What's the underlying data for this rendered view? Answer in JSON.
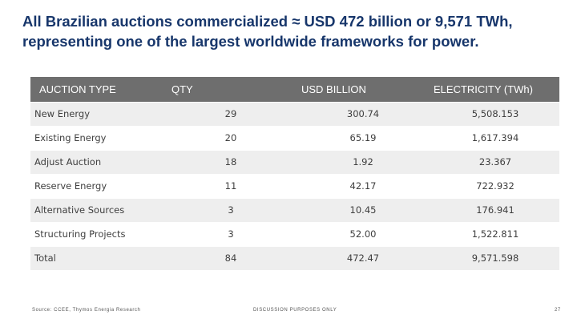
{
  "title": "All Brazilian auctions commercialized ≈ USD 472 billion or 9,571 TWh, representing one of the largest worldwide frameworks for power.",
  "columns": {
    "type": "AUCTION TYPE",
    "qty": "QTY",
    "usd": "USD BILLION",
    "electricity": "ELECTRICITY (TWh)"
  },
  "rows": [
    {
      "type": "New Energy",
      "qty": "29",
      "usd": "300.74",
      "electricity": "5,508.153"
    },
    {
      "type": "Existing Energy",
      "qty": "20",
      "usd": "65.19",
      "electricity": "1,617.394"
    },
    {
      "type": "Adjust Auction",
      "qty": "18",
      "usd": "1.92",
      "electricity": "23.367"
    },
    {
      "type": "Reserve Energy",
      "qty": "11",
      "usd": "42.17",
      "electricity": "722.932"
    },
    {
      "type": "Alternative Sources",
      "qty": "3",
      "usd": "10.45",
      "electricity": "176.941"
    },
    {
      "type": "Structuring Projects",
      "qty": "3",
      "usd": "52.00",
      "electricity": "1,522.811"
    },
    {
      "type": "Total",
      "qty": "84",
      "usd": "472.47",
      "electricity": "9,571.598"
    }
  ],
  "footer": {
    "source": "Source: CCEE, Thymos Energia Research",
    "disclaimer": "DISCUSSION PURPOSES ONLY",
    "page": "27"
  },
  "colors": {
    "title": "#17366b",
    "header_band": "#6e6e6e",
    "row_shade": "#eeeeee"
  }
}
